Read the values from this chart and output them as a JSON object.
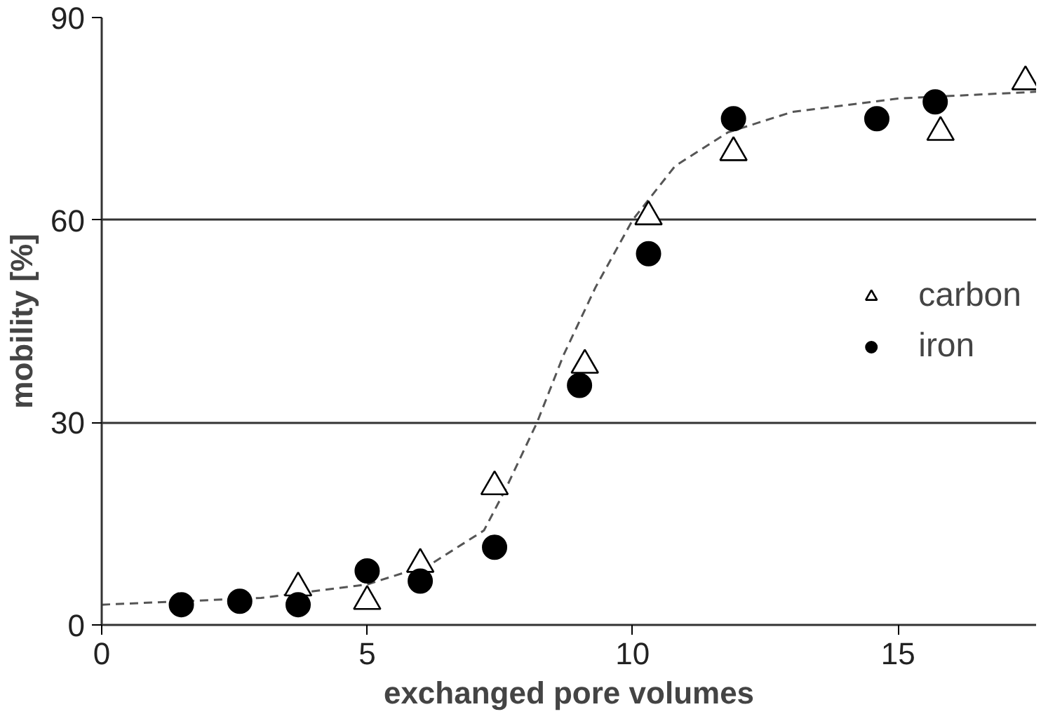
{
  "chart_data": {
    "type": "scatter",
    "xlabel": "exchanged pore volumes",
    "ylabel": "mobility [%]",
    "xlim": [
      0,
      17.6
    ],
    "ylim": [
      0,
      90
    ],
    "xticks": [
      0,
      5,
      10,
      15
    ],
    "yticks": [
      0,
      30,
      60,
      90
    ],
    "grid": "y",
    "legend": "right",
    "series": [
      {
        "type": "line",
        "line_style": "dashed",
        "marker": "none",
        "color": "#555555",
        "x": [
          0,
          3,
          5,
          6.2,
          7.2,
          7.6,
          8.2,
          8.7,
          9.3,
          10,
          10.8,
          11.8,
          13,
          15,
          17.6
        ],
        "values": [
          3,
          4,
          6,
          9,
          14,
          20,
          30,
          40,
          50,
          60,
          68,
          73,
          76,
          78,
          79
        ]
      },
      {
        "name": "carbon",
        "marker": "triangle",
        "color": "#000000",
        "x": [
          3.7,
          5.0,
          6.0,
          7.4,
          9.1,
          10.3,
          11.9,
          15.8,
          17.4
        ],
        "values": [
          5.5,
          3.5,
          9,
          20.5,
          38.5,
          60.5,
          70,
          73,
          80.5
        ]
      },
      {
        "name": "iron",
        "marker": "circle",
        "color": "#000000",
        "x": [
          1.5,
          2.6,
          3.7,
          5.0,
          6.0,
          7.4,
          9.0,
          10.3,
          11.9,
          14.6,
          15.7
        ],
        "values": [
          3,
          3.5,
          3,
          8,
          6.5,
          11.5,
          35.5,
          55,
          75,
          75,
          77.5
        ]
      }
    ]
  }
}
